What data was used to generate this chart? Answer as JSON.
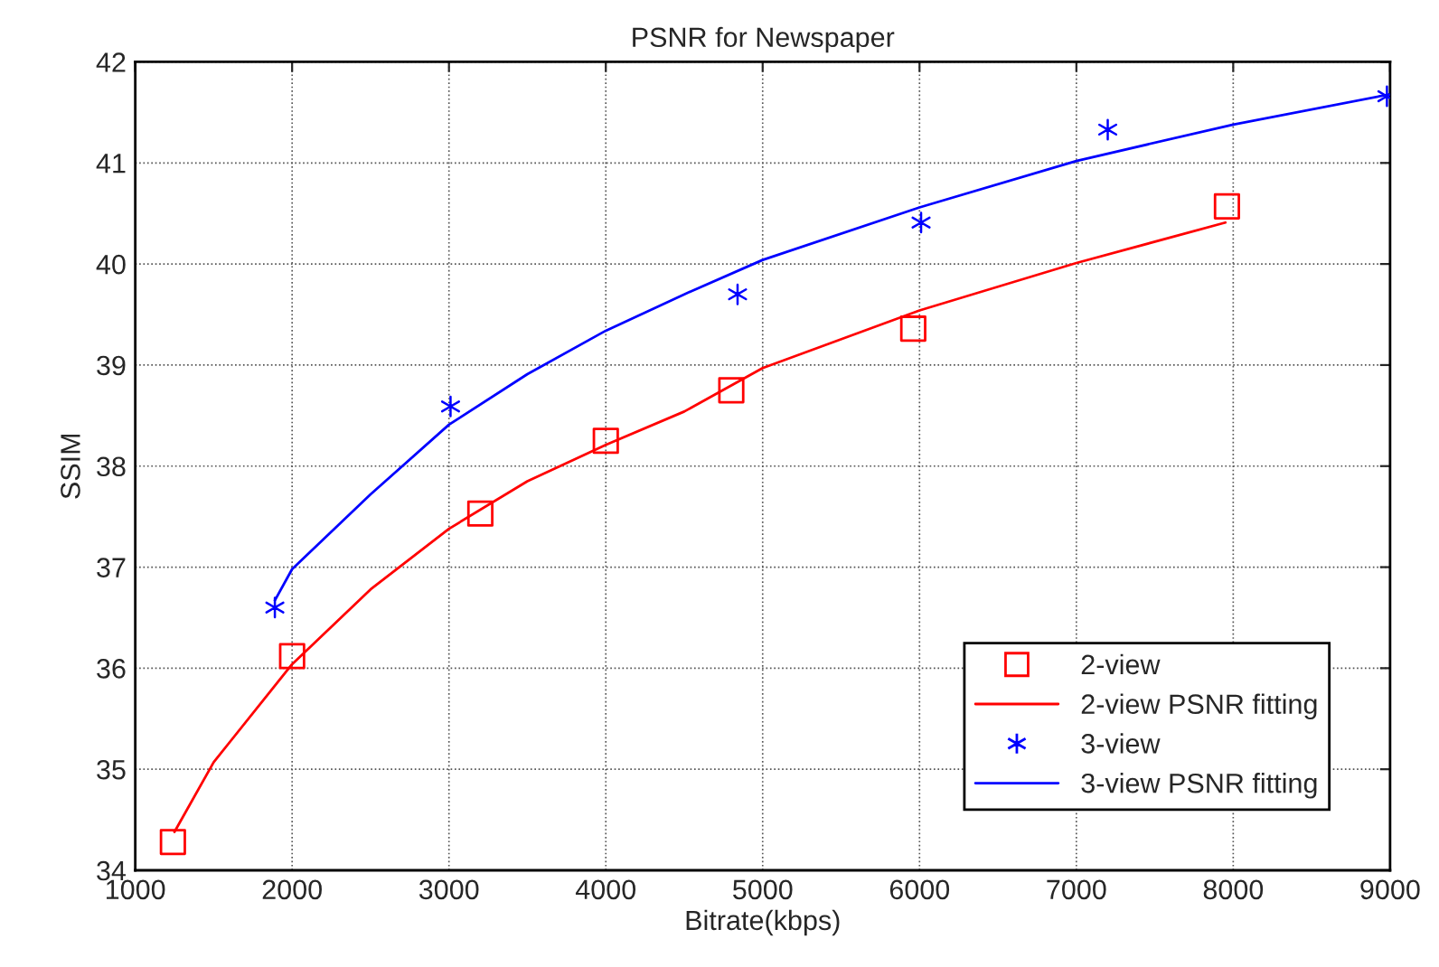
{
  "chart_data": {
    "type": "scatter",
    "title": "PSNR for Newspaper",
    "xlabel": "Bitrate(kbps)",
    "ylabel": "SSIM",
    "xlim": [
      1000,
      9000
    ],
    "xticks": [
      1000,
      2000,
      3000,
      4000,
      5000,
      6000,
      7000,
      8000,
      9000
    ],
    "ylim": [
      34,
      42
    ],
    "yticks": [
      34,
      35,
      36,
      37,
      38,
      39,
      40,
      41,
      42
    ],
    "grid": true,
    "legend": "bottom right",
    "series": [
      {
        "name": "2-view",
        "marker": "square",
        "color": "#ff0000",
        "x": [
          1240,
          2000,
          3200,
          4000,
          4800,
          5960,
          7960
        ],
        "values": [
          34.28,
          36.12,
          37.53,
          38.25,
          38.75,
          39.36,
          40.57
        ]
      },
      {
        "name": "2-view PSNR fitting",
        "type": "line",
        "marker": "none",
        "color": "#ff0000",
        "x": [
          1250,
          1500,
          2000,
          2500,
          3000,
          3500,
          4000,
          4500,
          5000,
          6000,
          7000,
          7950
        ],
        "values": [
          34.38,
          35.07,
          36.04,
          36.78,
          37.38,
          37.85,
          38.21,
          38.54,
          38.97,
          39.54,
          40.01,
          40.41
        ]
      },
      {
        "name": "3-view",
        "marker": "cross",
        "color": "#0000ff",
        "x": [
          1890,
          3010,
          4840,
          6010,
          7200,
          8980
        ],
        "values": [
          36.6,
          38.59,
          39.7,
          40.41,
          41.33,
          41.66
        ]
      },
      {
        "name": "3-view PSNR fitting",
        "type": "line",
        "marker": "none",
        "color": "#0000ff",
        "x": [
          1890,
          2000,
          2500,
          3000,
          3500,
          4000,
          4500,
          5000,
          6000,
          7000,
          8000,
          9000
        ],
        "values": [
          36.67,
          36.98,
          37.72,
          38.41,
          38.91,
          39.34,
          39.7,
          40.04,
          40.56,
          41.02,
          41.38,
          41.68
        ]
      }
    ]
  }
}
